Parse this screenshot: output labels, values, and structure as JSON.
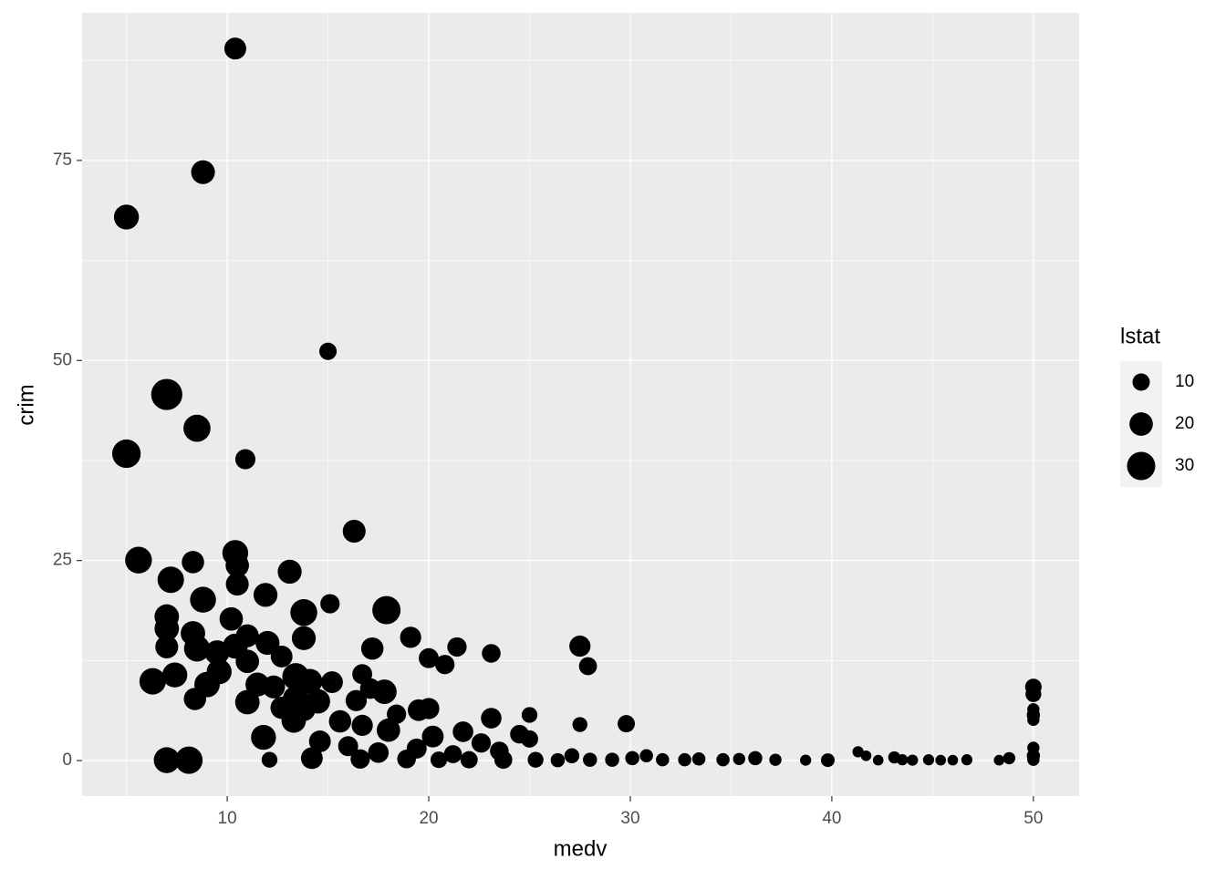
{
  "chart_data": {
    "type": "scatter",
    "x_label": "medv",
    "y_label": "crim",
    "size_label": "lstat",
    "color": "#000000",
    "xlim": [
      2.8,
      52.27
    ],
    "xticks": [
      10,
      20,
      30,
      40,
      50
    ],
    "ylim": [
      -4.44,
      93.45
    ],
    "yticks": [
      0,
      25,
      50,
      75
    ],
    "grid": true,
    "legend_position": "right",
    "size_legend": [
      10,
      20,
      30
    ],
    "x": [
      10.4,
      8.8,
      5.0,
      15.0,
      7.0,
      8.5,
      5.0,
      10.9,
      16.3,
      5.6,
      10.4,
      8.3,
      10.5,
      7.2,
      10.5,
      13.1,
      11.9,
      8.8,
      15.1,
      13.8,
      17.9,
      7.0,
      10.2,
      7.0,
      8.3,
      11.0,
      13.8,
      19.1,
      12.0,
      7.0,
      8.5,
      10.4,
      17.2,
      21.4,
      27.5,
      9.5,
      12.7,
      20.0,
      23.1,
      11.0,
      20.8,
      27.9,
      9.6,
      7.4,
      6.3,
      11.5,
      16.7,
      13.4,
      14.1,
      15.2,
      17.8,
      9.0,
      12.3,
      17.1,
      8.4,
      13.4,
      14.5,
      11.0,
      16.4,
      12.7,
      13.8,
      19.5,
      18.4,
      20.0,
      25.0,
      23.1,
      13.3,
      15.6,
      16.7,
      27.5,
      29.8,
      18.0,
      21.7,
      24.5,
      20.2,
      11.8,
      25.0,
      14.6,
      22.6,
      16.0,
      19.4,
      17.5,
      23.5,
      21.2,
      12.1,
      14.2,
      16.6,
      18.9,
      20.5,
      22.0,
      23.7,
      25.3,
      7.0,
      8.1,
      26.4,
      27.1,
      28.0,
      29.1,
      30.1,
      30.8,
      31.6,
      32.7,
      33.4,
      34.6,
      35.4,
      36.2,
      37.2,
      38.7,
      39.8,
      41.3,
      41.7,
      42.3,
      43.1,
      43.5,
      44.0,
      44.8,
      45.4,
      46.0,
      46.7,
      48.3,
      48.8,
      50.0,
      50.0,
      50.0,
      50.0,
      50.0,
      50.0,
      50.0,
      50.0
    ],
    "y": [
      88.98,
      73.53,
      67.92,
      51.14,
      45.75,
      41.53,
      38.35,
      37.66,
      28.66,
      25.05,
      25.94,
      24.8,
      24.39,
      22.6,
      22.05,
      23.6,
      20.7,
      20.1,
      19.6,
      18.5,
      18.8,
      18.0,
      17.7,
      16.5,
      15.9,
      15.6,
      15.3,
      15.4,
      14.7,
      14.2,
      14.0,
      14.3,
      14.0,
      14.2,
      14.3,
      13.5,
      13.0,
      12.8,
      13.4,
      12.4,
      12.0,
      11.8,
      11.1,
      10.7,
      9.9,
      9.5,
      10.8,
      10.5,
      9.9,
      9.8,
      8.6,
      9.5,
      9.2,
      9.0,
      7.7,
      7.7,
      7.4,
      7.3,
      7.5,
      6.6,
      6.4,
      6.3,
      5.8,
      6.5,
      5.7,
      5.3,
      5.0,
      4.9,
      4.4,
      4.5,
      4.6,
      3.8,
      3.6,
      3.3,
      3.0,
      2.9,
      2.7,
      2.4,
      2.2,
      1.8,
      1.5,
      1.0,
      1.2,
      0.8,
      0.1,
      0.3,
      0.2,
      0.2,
      0.1,
      0.1,
      0.1,
      0.1,
      0.05,
      0.05,
      0.05,
      0.6,
      0.1,
      0.1,
      0.3,
      0.6,
      0.1,
      0.1,
      0.2,
      0.1,
      0.2,
      0.3,
      0.1,
      0.05,
      0.05,
      1.1,
      0.6,
      0.05,
      0.4,
      0.1,
      0.05,
      0.1,
      0.05,
      0.05,
      0.1,
      0.05,
      0.3,
      9.2,
      8.3,
      6.4,
      5.7,
      5.1,
      1.6,
      0.6,
      0.1
    ],
    "size": [
      17.21,
      20.62,
      22.98,
      10.11,
      36.98,
      27.38,
      30.59,
      14.27,
      19.0,
      26.77,
      24.9,
      18.06,
      20.0,
      26.0,
      19.0,
      21.0,
      21.0,
      25.0,
      13.0,
      27.0,
      30.0,
      22.0,
      20.0,
      22.0,
      22.0,
      19.0,
      21.0,
      16.0,
      21.0,
      19.0,
      25.0,
      23.0,
      18.0,
      13.0,
      16.0,
      22.0,
      17.0,
      14.0,
      12.0,
      20.0,
      13.0,
      11.0,
      23.0,
      23.0,
      26.0,
      21.0,
      14.0,
      27.0,
      23.0,
      17.0,
      22.0,
      24.0,
      19.0,
      15.0,
      18.0,
      25.0,
      22.0,
      22.0,
      16.0,
      18.0,
      20.0,
      17.0,
      13.0,
      16.0,
      8.0,
      15.0,
      22.0,
      18.0,
      16.0,
      7.0,
      10.0,
      20.0,
      15.0,
      12.0,
      17.0,
      23.0,
      10.0,
      17.0,
      13.0,
      14.0,
      14.0,
      15.0,
      12.0,
      11.0,
      8.0,
      17.0,
      13.0,
      12.0,
      9.0,
      10.0,
      11.0,
      8.0,
      25.0,
      28.0,
      6.0,
      7.0,
      6.0,
      6.0,
      6.0,
      5.0,
      5.0,
      5.0,
      5.0,
      5.0,
      4.0,
      6.0,
      4.0,
      3.0,
      5.5,
      3.0,
      2.5,
      2.5,
      4.0,
      3.0,
      3.0,
      3.0,
      2.5,
      2.5,
      3.0,
      2.5,
      4.0,
      9.0,
      8.0,
      4.0,
      5.0,
      4.0,
      4.0,
      5.0,
      4.0
    ]
  }
}
